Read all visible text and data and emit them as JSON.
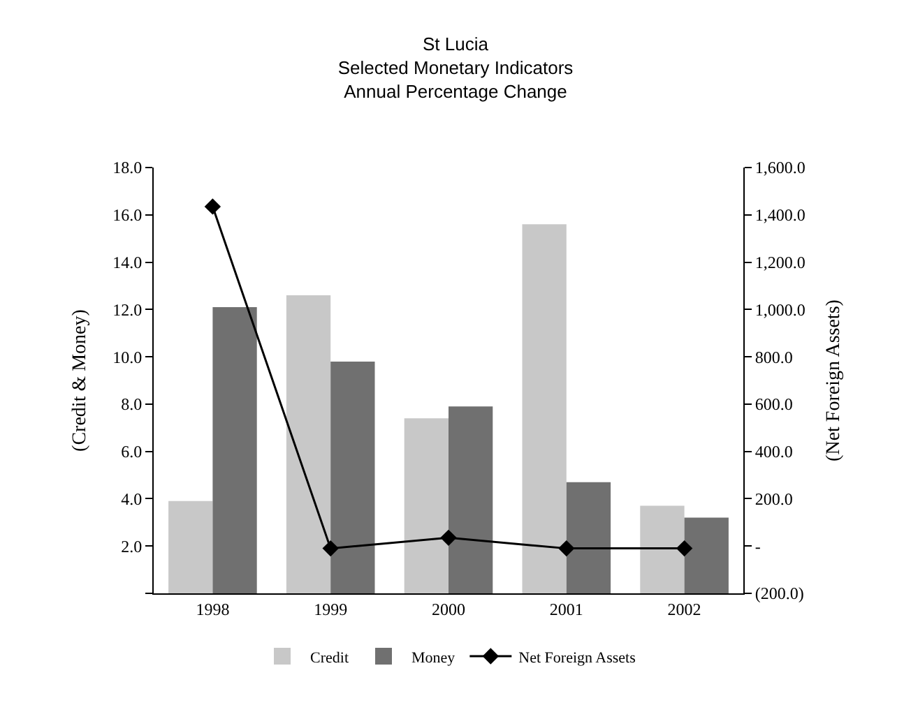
{
  "chart_data": {
    "type": "bar",
    "title": "St Lucia\nSelected Monetary Indicators\nAnnual Percentage Change",
    "categories": [
      "1998",
      "1999",
      "2000",
      "2001",
      "2002"
    ],
    "series": [
      {
        "name": "Credit",
        "color": "#c8c8c8",
        "values": [
          3.9,
          12.6,
          7.4,
          15.6,
          3.7
        ]
      },
      {
        "name": "Money",
        "color": "#707070",
        "values": [
          12.1,
          9.8,
          7.9,
          4.7,
          3.2
        ]
      },
      {
        "name": "Net Foreign Assets",
        "type": "line",
        "axis": "y2",
        "color": "#000000",
        "marker": "diamond",
        "values": [
          1435,
          -10,
          35,
          -10,
          -10
        ]
      }
    ],
    "ylabel": "(Credit & Money)",
    "y2label": "(Net Foreign Assets)",
    "ylim": [
      0,
      18
    ],
    "yticks": [
      {
        "value": 0,
        "label": null
      },
      {
        "value": 2,
        "label": "2.0"
      },
      {
        "value": 4,
        "label": "4.0"
      },
      {
        "value": 6,
        "label": "6.0"
      },
      {
        "value": 8,
        "label": "8.0"
      },
      {
        "value": 10,
        "label": "10.0"
      },
      {
        "value": 12,
        "label": "12.0"
      },
      {
        "value": 14,
        "label": "14.0"
      },
      {
        "value": 16,
        "label": "16.0"
      },
      {
        "value": 18,
        "label": "18.0"
      }
    ],
    "y2lim": [
      -200,
      1600
    ],
    "y2ticks": [
      {
        "value": -200,
        "label": "(200.0)"
      },
      {
        "value": 0,
        "label": "-"
      },
      {
        "value": 200,
        "label": "200.0"
      },
      {
        "value": 400,
        "label": "400.0"
      },
      {
        "value": 600,
        "label": "600.0"
      },
      {
        "value": 800,
        "label": "800.0"
      },
      {
        "value": 1000,
        "label": "1,000.0"
      },
      {
        "value": 1200,
        "label": "1,200.0"
      },
      {
        "value": 1400,
        "label": "1,400.0"
      },
      {
        "value": 1600,
        "label": "1,600.0"
      }
    ],
    "legend": "bottom"
  }
}
